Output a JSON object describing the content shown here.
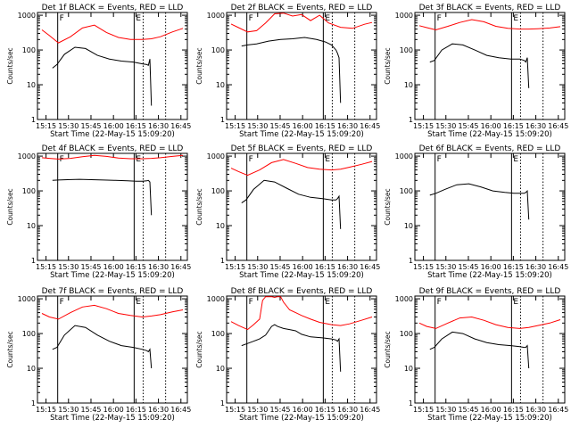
{
  "figure": {
    "xlabel": "Start Time (22-May-15 15:09:20)",
    "ylabel": "Counts/sec",
    "x_tick_labels": [
      "15:15",
      "15:30",
      "15:45",
      "16:00",
      "16:15",
      "16:30",
      "16:45"
    ],
    "y_tick_labels": [
      "1",
      "10",
      "100",
      "1000"
    ],
    "marker_labels": [
      "F",
      "E"
    ],
    "colors": {
      "events": "#000000",
      "lld": "#ff0000",
      "axes": "#000000",
      "background": "#ffffff"
    }
  },
  "chart_data": [
    {
      "type": "line",
      "title": "Det 1f BLACK = Events, RED = LLD",
      "x_unit": "minutes since 15:09:20",
      "xlim": [
        0,
        100
      ],
      "ylim": [
        1,
        1200
      ],
      "yscale": "log",
      "x_ticks": [
        5.7,
        20.7,
        35.7,
        50.7,
        65.7,
        80.7,
        95.7
      ],
      "vlines_solid": [
        13.5,
        64.5
      ],
      "vlines_dotted": [
        70.5,
        85.5
      ],
      "series": [
        {
          "name": "Events",
          "color": "#000000",
          "x": [
            10,
            13,
            18,
            25,
            32,
            40,
            48,
            56,
            64,
            70,
            73,
            74,
            75,
            76
          ],
          "y": [
            30,
            38,
            75,
            120,
            110,
            70,
            55,
            48,
            45,
            40,
            38,
            36,
            55,
            2.5
          ]
        },
        {
          "name": "LLD",
          "color": "#ff0000",
          "x": [
            3,
            8,
            14,
            22,
            30,
            38,
            46,
            54,
            62,
            70,
            76,
            82,
            90,
            97
          ],
          "y": [
            380,
            260,
            160,
            240,
            430,
            520,
            320,
            230,
            200,
            200,
            210,
            240,
            330,
            420
          ]
        }
      ]
    },
    {
      "type": "line",
      "title": "Det 2f BLACK = Events, RED = LLD",
      "x_unit": "minutes since 15:09:20",
      "xlim": [
        0,
        100
      ],
      "ylim": [
        1,
        1200
      ],
      "yscale": "log",
      "x_ticks": [
        5.7,
        20.7,
        35.7,
        50.7,
        65.7,
        80.7,
        95.7
      ],
      "vlines_solid": [
        13.5,
        64.5
      ],
      "vlines_dotted": [
        70.5,
        85.5
      ],
      "series": [
        {
          "name": "Events",
          "color": "#000000",
          "x": [
            10,
            14,
            20,
            28,
            36,
            44,
            52,
            60,
            66,
            70,
            73,
            74,
            75,
            76
          ],
          "y": [
            130,
            140,
            150,
            180,
            200,
            210,
            230,
            200,
            170,
            140,
            100,
            80,
            60,
            3
          ]
        },
        {
          "name": "LLD",
          "color": "#ff0000",
          "x": [
            3,
            8,
            14,
            20,
            26,
            32,
            38,
            44,
            50,
            56,
            62,
            68,
            76,
            84,
            92,
            97
          ],
          "y": [
            560,
            440,
            330,
            360,
            600,
            1100,
            1150,
            950,
            1050,
            700,
            1000,
            600,
            450,
            420,
            550,
            620
          ]
        }
      ]
    },
    {
      "type": "line",
      "title": "Det 3f BLACK = Events, RED = LLD",
      "x_unit": "minutes since 15:09:20",
      "xlim": [
        0,
        100
      ],
      "ylim": [
        1,
        1200
      ],
      "yscale": "log",
      "x_ticks": [
        5.7,
        20.7,
        35.7,
        50.7,
        65.7,
        80.7,
        95.7
      ],
      "vlines_solid": [
        13.5,
        64.5
      ],
      "vlines_dotted": [
        70.5,
        85.5
      ],
      "series": [
        {
          "name": "Events",
          "color": "#000000",
          "x": [
            10,
            13,
            18,
            25,
            32,
            40,
            48,
            56,
            64,
            70,
            73,
            74,
            75,
            76
          ],
          "y": [
            45,
            50,
            100,
            150,
            140,
            100,
            70,
            60,
            55,
            55,
            50,
            45,
            60,
            8
          ]
        },
        {
          "name": "LLD",
          "color": "#ff0000",
          "x": [
            3,
            8,
            14,
            22,
            30,
            38,
            46,
            54,
            62,
            70,
            76,
            82,
            90,
            97
          ],
          "y": [
            500,
            440,
            380,
            480,
            620,
            750,
            650,
            480,
            420,
            400,
            400,
            410,
            430,
            470
          ]
        }
      ]
    },
    {
      "type": "line",
      "title": "Det 4f BLACK = Events, RED = LLD",
      "x_unit": "minutes since 15:09:20",
      "xlim": [
        0,
        100
      ],
      "ylim": [
        1,
        1200
      ],
      "yscale": "log",
      "x_ticks": [
        5.7,
        20.7,
        35.7,
        50.7,
        65.7,
        80.7,
        95.7
      ],
      "vlines_solid": [
        13.5,
        64.5
      ],
      "vlines_dotted": [
        70.5,
        85.5
      ],
      "series": [
        {
          "name": "Events",
          "color": "#000000",
          "x": [
            10,
            14,
            20,
            28,
            36,
            44,
            52,
            60,
            66,
            70,
            73,
            74,
            75,
            76
          ],
          "y": [
            200,
            205,
            210,
            215,
            210,
            205,
            200,
            195,
            190,
            190,
            195,
            200,
            180,
            20
          ]
        },
        {
          "name": "LLD",
          "color": "#ff0000",
          "x": [
            3,
            8,
            14,
            22,
            30,
            38,
            46,
            54,
            62,
            70,
            76,
            82,
            90,
            97
          ],
          "y": [
            900,
            860,
            820,
            860,
            960,
            1050,
            980,
            880,
            840,
            840,
            860,
            900,
            980,
            1050
          ]
        }
      ]
    },
    {
      "type": "line",
      "title": "Det 5f BLACK = Events, RED = LLD",
      "x_unit": "minutes since 15:09:20",
      "xlim": [
        0,
        100
      ],
      "ylim": [
        1,
        1200
      ],
      "yscale": "log",
      "x_ticks": [
        5.7,
        20.7,
        35.7,
        50.7,
        65.7,
        80.7,
        95.7
      ],
      "vlines_solid": [
        13.5,
        64.5
      ],
      "vlines_dotted": [
        70.5,
        85.5
      ],
      "series": [
        {
          "name": "Events",
          "color": "#000000",
          "x": [
            10,
            13,
            18,
            25,
            32,
            40,
            48,
            56,
            64,
            70,
            73,
            74,
            75,
            76
          ],
          "y": [
            45,
            55,
            110,
            200,
            180,
            120,
            80,
            65,
            60,
            55,
            55,
            60,
            70,
            8
          ]
        },
        {
          "name": "LLD",
          "color": "#ff0000",
          "x": [
            3,
            8,
            14,
            22,
            30,
            38,
            46,
            54,
            62,
            70,
            76,
            82,
            90,
            97
          ],
          "y": [
            450,
            360,
            280,
            400,
            650,
            800,
            620,
            470,
            420,
            400,
            420,
            480,
            580,
            700
          ]
        }
      ]
    },
    {
      "type": "line",
      "title": "Det 6f BLACK = Events, RED = LLD",
      "x_unit": "minutes since 15:09:20",
      "xlim": [
        0,
        100
      ],
      "ylim": [
        1,
        1200
      ],
      "yscale": "log",
      "x_ticks": [
        5.7,
        20.7,
        35.7,
        50.7,
        65.7,
        80.7,
        95.7
      ],
      "vlines_solid": [
        13.5,
        64.5
      ],
      "vlines_dotted": [
        70.5,
        85.5
      ],
      "series": [
        {
          "name": "Events",
          "color": "#000000",
          "x": [
            10,
            14,
            20,
            28,
            36,
            44,
            52,
            60,
            66,
            70,
            73,
            74,
            75,
            76
          ],
          "y": [
            75,
            85,
            110,
            150,
            160,
            130,
            100,
            90,
            85,
            85,
            85,
            90,
            100,
            15
          ]
        }
      ]
    },
    {
      "type": "line",
      "title": "Det 7f BLACK = Events, RED = LLD",
      "x_unit": "minutes since 15:09:20",
      "xlim": [
        0,
        100
      ],
      "ylim": [
        1,
        1200
      ],
      "yscale": "log",
      "x_ticks": [
        5.7,
        20.7,
        35.7,
        50.7,
        65.7,
        80.7,
        95.7
      ],
      "vlines_solid": [
        13.5,
        64.5
      ],
      "vlines_dotted": [
        70.5,
        85.5
      ],
      "series": [
        {
          "name": "Events",
          "color": "#000000",
          "x": [
            10,
            13,
            18,
            25,
            32,
            40,
            48,
            56,
            64,
            70,
            73,
            74,
            75,
            76
          ],
          "y": [
            35,
            40,
            90,
            170,
            150,
            90,
            60,
            45,
            40,
            35,
            32,
            30,
            35,
            10
          ]
        },
        {
          "name": "LLD",
          "color": "#ff0000",
          "x": [
            3,
            8,
            14,
            22,
            30,
            38,
            46,
            54,
            62,
            70,
            76,
            82,
            90,
            97
          ],
          "y": [
            380,
            300,
            260,
            400,
            580,
            650,
            520,
            380,
            330,
            300,
            320,
            350,
            420,
            480
          ]
        }
      ]
    },
    {
      "type": "line",
      "title": "Det 8f BLACK = Events, RED = LLD",
      "x_unit": "minutes since 15:09:20",
      "xlim": [
        0,
        100
      ],
      "ylim": [
        1,
        1200
      ],
      "yscale": "log",
      "x_ticks": [
        5.7,
        20.7,
        35.7,
        50.7,
        65.7,
        80.7,
        95.7
      ],
      "vlines_solid": [
        13.5,
        64.5
      ],
      "vlines_dotted": [
        70.5,
        85.5
      ],
      "series": [
        {
          "name": "Events",
          "color": "#000000",
          "x": [
            10,
            13,
            18,
            22,
            26,
            28,
            30,
            32,
            34,
            38,
            42,
            46,
            50,
            56,
            64,
            70,
            73,
            74,
            75,
            76
          ],
          "y": [
            45,
            50,
            60,
            70,
            90,
            120,
            160,
            180,
            160,
            140,
            130,
            120,
            95,
            80,
            75,
            70,
            65,
            60,
            70,
            8
          ]
        },
        {
          "name": "LLD",
          "color": "#ff0000",
          "x": [
            3,
            8,
            14,
            18,
            22,
            24,
            26,
            28,
            30,
            32,
            34,
            36,
            38,
            42,
            46,
            50,
            56,
            62,
            70,
            76,
            82,
            90,
            97
          ],
          "y": [
            220,
            170,
            130,
            180,
            260,
            900,
            1150,
            1150,
            1150,
            1100,
            1150,
            1150,
            800,
            480,
            400,
            330,
            260,
            210,
            180,
            170,
            190,
            240,
            300
          ]
        }
      ]
    },
    {
      "type": "line",
      "title": "Det 9f BLACK = Events, RED = LLD",
      "x_unit": "minutes since 15:09:20",
      "xlim": [
        0,
        100
      ],
      "ylim": [
        1,
        1200
      ],
      "yscale": "log",
      "x_ticks": [
        5.7,
        20.7,
        35.7,
        50.7,
        65.7,
        80.7,
        95.7
      ],
      "vlines_solid": [
        13.5,
        64.5
      ],
      "vlines_dotted": [
        70.5,
        85.5
      ],
      "series": [
        {
          "name": "Events",
          "color": "#000000",
          "x": [
            10,
            13,
            18,
            25,
            32,
            40,
            48,
            56,
            64,
            70,
            73,
            74,
            75,
            76
          ],
          "y": [
            35,
            40,
            70,
            110,
            100,
            70,
            55,
            48,
            45,
            42,
            40,
            40,
            45,
            10
          ]
        },
        {
          "name": "LLD",
          "color": "#ff0000",
          "x": [
            3,
            8,
            14,
            22,
            30,
            38,
            46,
            54,
            62,
            70,
            76,
            82,
            90,
            97
          ],
          "y": [
            200,
            160,
            140,
            200,
            280,
            300,
            240,
            180,
            150,
            140,
            150,
            170,
            200,
            250
          ]
        }
      ]
    }
  ]
}
